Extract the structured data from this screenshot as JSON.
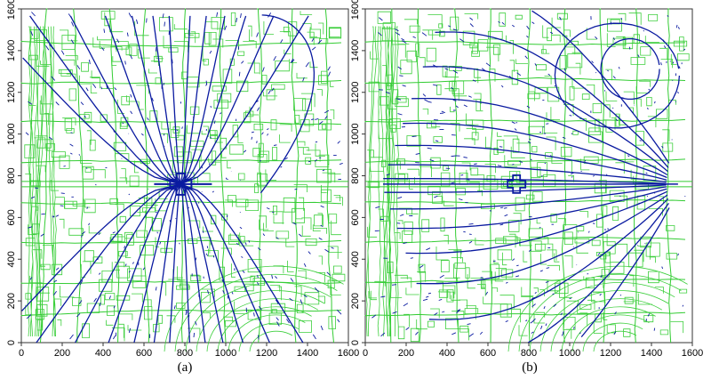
{
  "figure": {
    "panels": [
      {
        "caption": "(a)",
        "x_ticks": [
          "0",
          "200",
          "400",
          "600",
          "800",
          "1000",
          "1200",
          "1400",
          "1600"
        ],
        "y_ticks": [
          "0",
          "200",
          "400",
          "600",
          "800",
          "1000",
          "1200",
          "1400",
          "1600"
        ]
      },
      {
        "caption": "(b)",
        "x_ticks": [
          "0",
          "200",
          "400",
          "600",
          "800",
          "1000",
          "1200",
          "1400",
          "1600"
        ],
        "y_ticks": [
          "0",
          "200",
          "400",
          "600",
          "800",
          "1000",
          "1200",
          "1400",
          "1600"
        ]
      }
    ],
    "colors": {
      "street_network": "#33cc33",
      "field_lines": "#0a1aa0",
      "frame": "#333333",
      "text": "#000000"
    }
  },
  "chart_data": [
    {
      "type": "diagram",
      "caption": "(a)",
      "xlim": [
        0,
        1600
      ],
      "ylim": [
        0,
        1600
      ],
      "source_point": [
        780,
        760
      ],
      "field_pattern": "lines diverging upward and downward from a central source near (780, 760)"
    },
    {
      "type": "diagram",
      "caption": "(b)",
      "xlim": [
        0,
        1600
      ],
      "ylim": [
        0,
        1600
      ],
      "source_point": [
        1530,
        760
      ],
      "field_pattern": "lines converging to a point on the right edge near (1530, 760)"
    }
  ]
}
